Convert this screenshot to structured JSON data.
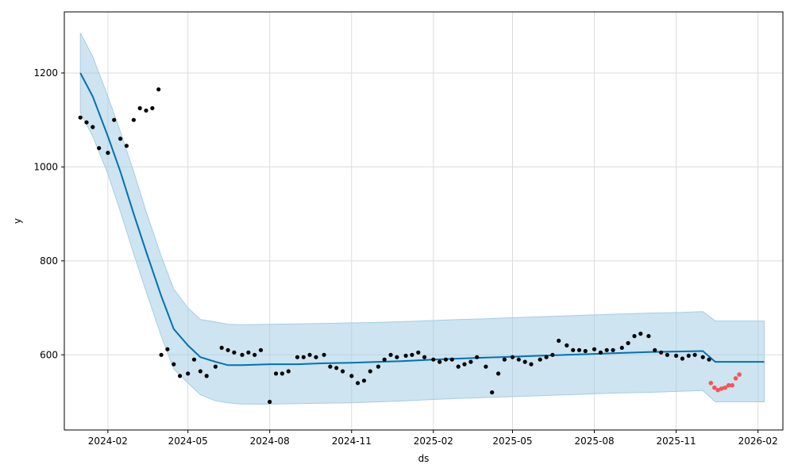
{
  "chart_data": {
    "type": "line",
    "xlabel": "ds",
    "ylabel": "y",
    "xlim": [
      "2023-12-14",
      "2026-03-01"
    ],
    "ylim": [
      440,
      1330
    ],
    "grid": true,
    "x_ticks": [
      "2024-02",
      "2024-05",
      "2024-08",
      "2024-11",
      "2025-02",
      "2025-05",
      "2025-08",
      "2025-11",
      "2026-02"
    ],
    "y_ticks": [
      600,
      800,
      1000,
      1200
    ],
    "colors": {
      "forecast": "#0072B2",
      "interval": "#A6CEE3",
      "observed": "#000000",
      "recent": "#FF3B3B"
    },
    "forecast": {
      "x": [
        "2024-01-01",
        "2024-01-15",
        "2024-02-01",
        "2024-02-15",
        "2024-03-01",
        "2024-03-15",
        "2024-04-01",
        "2024-04-15",
        "2024-05-01",
        "2024-05-15",
        "2024-06-01",
        "2024-06-15",
        "2024-07-01",
        "2024-08-01",
        "2024-09-01",
        "2024-10-01",
        "2024-11-01",
        "2024-12-01",
        "2025-01-01",
        "2025-02-01",
        "2025-03-01",
        "2025-04-01",
        "2025-05-01",
        "2025-06-01",
        "2025-07-01",
        "2025-08-01",
        "2025-09-01",
        "2025-10-01",
        "2025-11-01",
        "2025-12-01",
        "2025-12-15",
        "2026-01-01",
        "2026-02-01",
        "2026-02-08"
      ],
      "yhat": [
        1200,
        1150,
        1065,
        990,
        900,
        820,
        725,
        655,
        620,
        595,
        585,
        578,
        578,
        580,
        580,
        582,
        583,
        585,
        587,
        590,
        592,
        594,
        596,
        598,
        600,
        602,
        604,
        606,
        607,
        608,
        585,
        585,
        585,
        585
      ],
      "upper": [
        1285,
        1235,
        1150,
        1075,
        990,
        905,
        810,
        740,
        700,
        675,
        670,
        665,
        664,
        665,
        666,
        667,
        668,
        669,
        671,
        673,
        675,
        677,
        679,
        681,
        683,
        685,
        687,
        689,
        690,
        692,
        672,
        672,
        672,
        672
      ],
      "lower": [
        1115,
        1065,
        985,
        905,
        815,
        735,
        640,
        570,
        540,
        515,
        502,
        498,
        495,
        495,
        496,
        497,
        498,
        500,
        502,
        505,
        507,
        509,
        511,
        513,
        515,
        517,
        519,
        520,
        522,
        524,
        500,
        500,
        500,
        500
      ]
    },
    "observed": {
      "name": "",
      "x": [
        "2024-01-01",
        "2024-01-08",
        "2024-01-15",
        "2024-01-22",
        "2024-02-01",
        "2024-02-08",
        "2024-02-15",
        "2024-02-22",
        "2024-03-01",
        "2024-03-08",
        "2024-03-15",
        "2024-03-22",
        "2024-03-29",
        "2024-04-01",
        "2024-04-08",
        "2024-04-15",
        "2024-04-22",
        "2024-05-01",
        "2024-05-08",
        "2024-05-15",
        "2024-05-22",
        "2024-06-01",
        "2024-06-08",
        "2024-06-15",
        "2024-06-22",
        "2024-07-01",
        "2024-07-08",
        "2024-07-15",
        "2024-07-22",
        "2024-08-01",
        "2024-08-08",
        "2024-08-15",
        "2024-08-22",
        "2024-09-01",
        "2024-09-08",
        "2024-09-15",
        "2024-09-22",
        "2024-10-01",
        "2024-10-08",
        "2024-10-15",
        "2024-10-22",
        "2024-11-01",
        "2024-11-08",
        "2024-11-15",
        "2024-11-22",
        "2024-12-01",
        "2024-12-08",
        "2024-12-15",
        "2024-12-22",
        "2025-01-01",
        "2025-01-08",
        "2025-01-15",
        "2025-01-22",
        "2025-02-01",
        "2025-02-08",
        "2025-02-15",
        "2025-02-22",
        "2025-03-01",
        "2025-03-08",
        "2025-03-15",
        "2025-03-22",
        "2025-04-01",
        "2025-04-08",
        "2025-04-15",
        "2025-04-22",
        "2025-05-01",
        "2025-05-08",
        "2025-05-15",
        "2025-05-22",
        "2025-06-01",
        "2025-06-08",
        "2025-06-15",
        "2025-06-22",
        "2025-07-01",
        "2025-07-08",
        "2025-07-15",
        "2025-07-22",
        "2025-08-01",
        "2025-08-08",
        "2025-08-15",
        "2025-08-22",
        "2025-09-01",
        "2025-09-08",
        "2025-09-15",
        "2025-09-22",
        "2025-10-01",
        "2025-10-08",
        "2025-10-15",
        "2025-10-22",
        "2025-11-01",
        "2025-11-08",
        "2025-11-15",
        "2025-11-22",
        "2025-12-01",
        "2025-12-08"
      ],
      "y": [
        1105,
        1095,
        1085,
        1040,
        1030,
        1100,
        1060,
        1045,
        1100,
        1125,
        1120,
        1125,
        1165,
        600,
        612,
        580,
        555,
        560,
        590,
        565,
        555,
        575,
        615,
        610,
        605,
        600,
        605,
        600,
        610,
        500,
        560,
        560,
        565,
        595,
        595,
        600,
        595,
        600,
        575,
        572,
        565,
        555,
        540,
        545,
        565,
        575,
        590,
        600,
        595,
        598,
        600,
        605,
        595,
        590,
        585,
        590,
        590,
        575,
        580,
        585,
        595,
        575,
        520,
        560,
        590,
        595,
        590,
        585,
        580,
        590,
        595,
        600,
        630,
        620,
        610,
        610,
        608,
        612,
        605,
        610,
        610,
        615,
        625,
        640,
        645,
        640,
        610,
        605,
        600,
        598,
        592,
        598,
        600,
        595,
        590
      ]
    },
    "recent": {
      "name": "",
      "x": [
        "2025-12-10",
        "2025-12-14",
        "2025-12-18",
        "2025-12-22",
        "2025-12-26",
        "2025-12-30",
        "2026-01-03",
        "2026-01-07",
        "2026-01-11"
      ],
      "y": [
        540,
        530,
        525,
        528,
        530,
        535,
        535,
        550,
        558
      ]
    }
  }
}
